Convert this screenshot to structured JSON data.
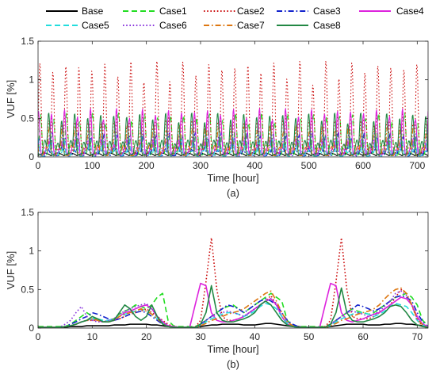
{
  "legend": {
    "entries": [
      {
        "label": "Base",
        "color": "#000000",
        "dash": "solid"
      },
      {
        "label": "Case1",
        "color": "#22dd22",
        "dash": "dash"
      },
      {
        "label": "Case2",
        "color": "#cc1111",
        "dash": "dot"
      },
      {
        "label": "Case3",
        "color": "#1122cc",
        "dash": "dashdot"
      },
      {
        "label": "Case4",
        "color": "#dd22dd",
        "dash": "solid"
      },
      {
        "label": "Case5",
        "color": "#22dddd",
        "dash": "dash"
      },
      {
        "label": "Case6",
        "color": "#8833dd",
        "dash": "dot"
      },
      {
        "label": "Case7",
        "color": "#dd7711",
        "dash": "dashdot"
      },
      {
        "label": "Case8",
        "color": "#228844",
        "dash": "solid"
      }
    ]
  },
  "chart_data": [
    {
      "type": "line",
      "panel_label": "(a)",
      "xlabel": "Time [hour]",
      "ylabel": "VUF [%]",
      "xlim": [
        0,
        720
      ],
      "ylim": [
        0,
        1.5
      ],
      "xticks": [
        0,
        100,
        200,
        300,
        400,
        500,
        600,
        700
      ],
      "yticks": [
        0,
        0.5,
        1,
        1.5
      ],
      "grid": false,
      "daily_pattern": {
        "period_hours": 24,
        "days": 30,
        "series_peaks": {
          "Base": 0.05,
          "Case1": 0.55,
          "Case2": 1.2,
          "Case3": 0.3,
          "Case4": 0.6,
          "Case5": 0.25,
          "Case6": 0.35,
          "Case7": 0.4,
          "Case8": 0.55
        }
      }
    },
    {
      "type": "line",
      "panel_label": "(b)",
      "xlabel": "Time [hour]",
      "ylabel": "VUF [%]",
      "xlim": [
        0,
        72
      ],
      "ylim": [
        0,
        1.5
      ],
      "xticks": [
        0,
        10,
        20,
        30,
        40,
        50,
        60,
        70
      ],
      "yticks": [
        0,
        0.5,
        1,
        1.5
      ],
      "grid": false,
      "x": [
        0,
        1,
        2,
        3,
        4,
        5,
        6,
        7,
        8,
        9,
        10,
        11,
        12,
        13,
        14,
        15,
        16,
        17,
        18,
        19,
        20,
        21,
        22,
        23,
        24,
        25,
        26,
        27,
        28,
        29,
        30,
        31,
        32,
        33,
        34,
        35,
        36,
        37,
        38,
        39,
        40,
        41,
        42,
        43,
        44,
        45,
        46,
        47,
        48,
        49,
        50,
        51,
        52,
        53,
        54,
        55,
        56,
        57,
        58,
        59,
        60,
        61,
        62,
        63,
        64,
        65,
        66,
        67,
        68,
        69,
        70,
        71,
        72
      ],
      "series": [
        {
          "name": "Base",
          "values": [
            0.01,
            0.01,
            0.01,
            0.01,
            0.01,
            0.01,
            0.02,
            0.02,
            0.02,
            0.03,
            0.03,
            0.03,
            0.03,
            0.03,
            0.04,
            0.04,
            0.04,
            0.05,
            0.05,
            0.05,
            0.05,
            0.04,
            0.04,
            0.03,
            0.02,
            0.02,
            0.01,
            0.01,
            0.01,
            0.01,
            0.02,
            0.03,
            0.04,
            0.04,
            0.05,
            0.05,
            0.05,
            0.05,
            0.04,
            0.04,
            0.04,
            0.05,
            0.06,
            0.06,
            0.05,
            0.04,
            0.03,
            0.02,
            0.02,
            0.01,
            0.01,
            0.01,
            0.01,
            0.01,
            0.02,
            0.03,
            0.04,
            0.05,
            0.05,
            0.05,
            0.05,
            0.04,
            0.04,
            0.04,
            0.05,
            0.05,
            0.06,
            0.06,
            0.05,
            0.05,
            0.04,
            0.03,
            0.02
          ]
        },
        {
          "name": "Case1",
          "values": [
            0.02,
            0.02,
            0.02,
            0.02,
            0.02,
            0.02,
            0.05,
            0.1,
            0.15,
            0.2,
            0.15,
            0.1,
            0.08,
            0.1,
            0.12,
            0.18,
            0.22,
            0.25,
            0.3,
            0.28,
            0.25,
            0.3,
            0.4,
            0.45,
            0.1,
            0.03,
            0.02,
            0.02,
            0.02,
            0.02,
            0.05,
            0.1,
            0.15,
            0.2,
            0.25,
            0.28,
            0.3,
            0.25,
            0.2,
            0.25,
            0.3,
            0.35,
            0.4,
            0.45,
            0.4,
            0.35,
            0.1,
            0.03,
            0.02,
            0.02,
            0.02,
            0.02,
            0.02,
            0.02,
            0.05,
            0.1,
            0.15,
            0.2,
            0.25,
            0.22,
            0.2,
            0.18,
            0.2,
            0.25,
            0.3,
            0.35,
            0.4,
            0.42,
            0.45,
            0.4,
            0.3,
            0.1,
            0.03
          ]
        },
        {
          "name": "Case2",
          "values": [
            0.01,
            0.01,
            0.01,
            0.01,
            0.01,
            0.02,
            0.03,
            0.05,
            0.08,
            0.1,
            0.1,
            0.1,
            0.08,
            0.08,
            0.1,
            0.12,
            0.15,
            0.18,
            0.2,
            0.22,
            0.25,
            0.2,
            0.15,
            0.1,
            0.05,
            0.02,
            0.01,
            0.01,
            0.01,
            0.01,
            0.1,
            0.6,
            1.17,
            0.5,
            0.15,
            0.1,
            0.1,
            0.12,
            0.15,
            0.2,
            0.25,
            0.3,
            0.35,
            0.42,
            0.3,
            0.15,
            0.05,
            0.02,
            0.01,
            0.01,
            0.01,
            0.01,
            0.01,
            0.02,
            0.1,
            0.6,
            1.17,
            0.5,
            0.15,
            0.12,
            0.12,
            0.12,
            0.15,
            0.2,
            0.25,
            0.3,
            0.4,
            0.5,
            0.45,
            0.3,
            0.1,
            0.03,
            0.01
          ]
        },
        {
          "name": "Case3",
          "values": [
            0.01,
            0.01,
            0.01,
            0.01,
            0.01,
            0.02,
            0.05,
            0.08,
            0.12,
            0.15,
            0.2,
            0.18,
            0.15,
            0.12,
            0.1,
            0.12,
            0.15,
            0.18,
            0.2,
            0.22,
            0.2,
            0.15,
            0.1,
            0.05,
            0.02,
            0.01,
            0.01,
            0.01,
            0.01,
            0.01,
            0.05,
            0.1,
            0.15,
            0.2,
            0.25,
            0.3,
            0.28,
            0.25,
            0.2,
            0.25,
            0.3,
            0.35,
            0.38,
            0.35,
            0.3,
            0.2,
            0.1,
            0.05,
            0.02,
            0.01,
            0.01,
            0.01,
            0.01,
            0.01,
            0.05,
            0.1,
            0.15,
            0.2,
            0.25,
            0.3,
            0.28,
            0.25,
            0.22,
            0.25,
            0.3,
            0.35,
            0.4,
            0.42,
            0.4,
            0.35,
            0.2,
            0.08,
            0.02
          ]
        },
        {
          "name": "Case4",
          "values": [
            0.01,
            0.01,
            0.01,
            0.01,
            0.01,
            0.02,
            0.03,
            0.05,
            0.08,
            0.1,
            0.12,
            0.1,
            0.08,
            0.08,
            0.1,
            0.15,
            0.2,
            0.22,
            0.25,
            0.28,
            0.3,
            0.25,
            0.15,
            0.08,
            0.03,
            0.02,
            0.01,
            0.01,
            0.01,
            0.3,
            0.58,
            0.55,
            0.2,
            0.1,
            0.08,
            0.08,
            0.1,
            0.12,
            0.15,
            0.2,
            0.25,
            0.3,
            0.35,
            0.38,
            0.3,
            0.15,
            0.05,
            0.02,
            0.01,
            0.01,
            0.01,
            0.01,
            0.01,
            0.3,
            0.58,
            0.55,
            0.2,
            0.1,
            0.08,
            0.1,
            0.12,
            0.15,
            0.18,
            0.2,
            0.25,
            0.3,
            0.35,
            0.4,
            0.38,
            0.3,
            0.15,
            0.05,
            0.02
          ]
        },
        {
          "name": "Case5",
          "values": [
            0.01,
            0.01,
            0.01,
            0.01,
            0.01,
            0.02,
            0.03,
            0.05,
            0.08,
            0.1,
            0.12,
            0.12,
            0.1,
            0.1,
            0.12,
            0.15,
            0.18,
            0.2,
            0.22,
            0.25,
            0.22,
            0.18,
            0.12,
            0.06,
            0.02,
            0.01,
            0.01,
            0.01,
            0.01,
            0.01,
            0.03,
            0.08,
            0.12,
            0.15,
            0.18,
            0.2,
            0.2,
            0.18,
            0.15,
            0.18,
            0.22,
            0.28,
            0.32,
            0.3,
            0.25,
            0.15,
            0.06,
            0.02,
            0.01,
            0.01,
            0.01,
            0.01,
            0.01,
            0.01,
            0.03,
            0.08,
            0.12,
            0.15,
            0.18,
            0.2,
            0.2,
            0.18,
            0.15,
            0.18,
            0.22,
            0.28,
            0.32,
            0.3,
            0.28,
            0.2,
            0.1,
            0.04,
            0.01
          ]
        },
        {
          "name": "Case6",
          "values": [
            0.01,
            0.01,
            0.01,
            0.01,
            0.01,
            0.05,
            0.1,
            0.2,
            0.28,
            0.15,
            0.1,
            0.08,
            0.08,
            0.1,
            0.12,
            0.18,
            0.22,
            0.25,
            0.28,
            0.3,
            0.32,
            0.25,
            0.15,
            0.08,
            0.03,
            0.01,
            0.01,
            0.01,
            0.01,
            0.01,
            0.05,
            0.1,
            0.15,
            0.18,
            0.2,
            0.22,
            0.2,
            0.18,
            0.15,
            0.2,
            0.25,
            0.3,
            0.35,
            0.38,
            0.32,
            0.2,
            0.08,
            0.03,
            0.01,
            0.01,
            0.01,
            0.01,
            0.01,
            0.01,
            0.05,
            0.1,
            0.15,
            0.2,
            0.22,
            0.2,
            0.18,
            0.15,
            0.18,
            0.22,
            0.28,
            0.35,
            0.45,
            0.48,
            0.42,
            0.3,
            0.12,
            0.04,
            0.01
          ]
        },
        {
          "name": "Case7",
          "values": [
            0.01,
            0.01,
            0.01,
            0.01,
            0.01,
            0.02,
            0.03,
            0.05,
            0.08,
            0.1,
            0.12,
            0.1,
            0.08,
            0.08,
            0.1,
            0.15,
            0.18,
            0.2,
            0.22,
            0.25,
            0.22,
            0.18,
            0.12,
            0.06,
            0.02,
            0.01,
            0.01,
            0.01,
            0.01,
            0.01,
            0.03,
            0.06,
            0.1,
            0.12,
            0.15,
            0.18,
            0.2,
            0.22,
            0.25,
            0.3,
            0.35,
            0.4,
            0.45,
            0.48,
            0.35,
            0.2,
            0.08,
            0.03,
            0.01,
            0.01,
            0.01,
            0.01,
            0.01,
            0.01,
            0.03,
            0.06,
            0.1,
            0.12,
            0.15,
            0.18,
            0.2,
            0.22,
            0.25,
            0.3,
            0.38,
            0.45,
            0.5,
            0.52,
            0.45,
            0.3,
            0.12,
            0.04,
            0.01
          ]
        },
        {
          "name": "Case8",
          "values": [
            0.01,
            0.01,
            0.01,
            0.01,
            0.01,
            0.02,
            0.03,
            0.05,
            0.08,
            0.1,
            0.15,
            0.12,
            0.08,
            0.08,
            0.1,
            0.2,
            0.3,
            0.25,
            0.15,
            0.1,
            0.15,
            0.3,
            0.15,
            0.05,
            0.02,
            0.01,
            0.01,
            0.01,
            0.01,
            0.01,
            0.05,
            0.2,
            0.55,
            0.2,
            0.1,
            0.08,
            0.08,
            0.1,
            0.12,
            0.15,
            0.2,
            0.3,
            0.35,
            0.3,
            0.2,
            0.1,
            0.04,
            0.02,
            0.01,
            0.01,
            0.01,
            0.01,
            0.01,
            0.01,
            0.05,
            0.2,
            0.52,
            0.2,
            0.1,
            0.08,
            0.08,
            0.1,
            0.12,
            0.15,
            0.2,
            0.28,
            0.3,
            0.28,
            0.2,
            0.1,
            0.04,
            0.02,
            0.01
          ]
        }
      ]
    }
  ]
}
